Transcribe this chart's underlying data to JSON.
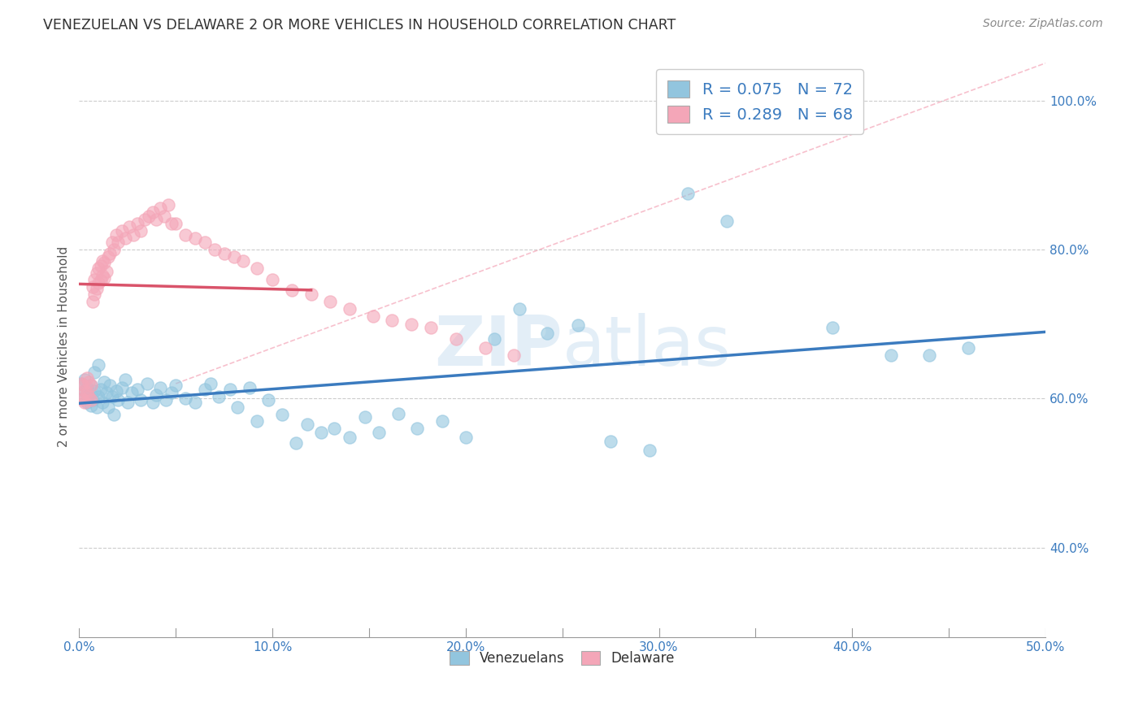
{
  "title": "VENEZUELAN VS DELAWARE 2 OR MORE VEHICLES IN HOUSEHOLD CORRELATION CHART",
  "source": "Source: ZipAtlas.com",
  "ylabel": "2 or more Vehicles in Household",
  "xlim": [
    0.0,
    0.5
  ],
  "ylim": [
    0.28,
    1.06
  ],
  "xtick_labels": [
    "0.0%",
    "",
    "10.0%",
    "",
    "20.0%",
    "",
    "30.0%",
    "",
    "40.0%",
    "",
    "50.0%"
  ],
  "xtick_vals": [
    0.0,
    0.05,
    0.1,
    0.15,
    0.2,
    0.25,
    0.3,
    0.35,
    0.4,
    0.45,
    0.5
  ],
  "ytick_labels": [
    "40.0%",
    "60.0%",
    "80.0%",
    "100.0%"
  ],
  "ytick_vals": [
    0.4,
    0.6,
    0.8,
    1.0
  ],
  "blue_color": "#92c5de",
  "pink_color": "#f4a6b8",
  "blue_line_color": "#3b7bbf",
  "pink_line_color": "#d9536a",
  "diag_line_color": "#f4a6b8",
  "watermark_color": "#c8dff0",
  "R_blue": 0.075,
  "N_blue": 72,
  "R_pink": 0.289,
  "N_pink": 68,
  "blue_scatter_x": [
    0.001,
    0.002,
    0.003,
    0.003,
    0.004,
    0.004,
    0.005,
    0.006,
    0.006,
    0.007,
    0.008,
    0.008,
    0.009,
    0.01,
    0.01,
    0.011,
    0.012,
    0.013,
    0.014,
    0.015,
    0.016,
    0.017,
    0.018,
    0.019,
    0.02,
    0.022,
    0.024,
    0.025,
    0.027,
    0.03,
    0.032,
    0.035,
    0.038,
    0.04,
    0.042,
    0.045,
    0.048,
    0.05,
    0.055,
    0.06,
    0.065,
    0.068,
    0.072,
    0.078,
    0.082,
    0.088,
    0.092,
    0.098,
    0.105,
    0.112,
    0.118,
    0.125,
    0.132,
    0.14,
    0.148,
    0.155,
    0.165,
    0.175,
    0.188,
    0.2,
    0.215,
    0.228,
    0.242,
    0.258,
    0.275,
    0.295,
    0.315,
    0.335,
    0.39,
    0.42,
    0.44,
    0.46
  ],
  "blue_scatter_y": [
    0.62,
    0.6,
    0.61,
    0.625,
    0.595,
    0.615,
    0.605,
    0.59,
    0.618,
    0.598,
    0.61,
    0.635,
    0.588,
    0.602,
    0.645,
    0.612,
    0.595,
    0.622,
    0.608,
    0.588,
    0.618,
    0.602,
    0.578,
    0.61,
    0.598,
    0.615,
    0.625,
    0.595,
    0.608,
    0.612,
    0.598,
    0.62,
    0.595,
    0.605,
    0.615,
    0.598,
    0.608,
    0.618,
    0.6,
    0.595,
    0.612,
    0.62,
    0.602,
    0.612,
    0.588,
    0.615,
    0.57,
    0.598,
    0.578,
    0.54,
    0.565,
    0.555,
    0.56,
    0.548,
    0.575,
    0.555,
    0.58,
    0.56,
    0.57,
    0.548,
    0.68,
    0.72,
    0.688,
    0.698,
    0.542,
    0.53,
    0.875,
    0.838,
    0.695,
    0.658,
    0.658,
    0.668
  ],
  "pink_scatter_x": [
    0.001,
    0.001,
    0.002,
    0.002,
    0.003,
    0.003,
    0.004,
    0.004,
    0.005,
    0.005,
    0.006,
    0.006,
    0.007,
    0.007,
    0.008,
    0.008,
    0.009,
    0.009,
    0.01,
    0.01,
    0.011,
    0.011,
    0.012,
    0.012,
    0.013,
    0.013,
    0.014,
    0.015,
    0.016,
    0.017,
    0.018,
    0.019,
    0.02,
    0.022,
    0.024,
    0.026,
    0.028,
    0.03,
    0.032,
    0.034,
    0.036,
    0.038,
    0.04,
    0.042,
    0.044,
    0.046,
    0.048,
    0.05,
    0.055,
    0.06,
    0.065,
    0.07,
    0.075,
    0.08,
    0.085,
    0.092,
    0.1,
    0.11,
    0.12,
    0.13,
    0.14,
    0.152,
    0.162,
    0.172,
    0.182,
    0.195,
    0.21,
    0.225
  ],
  "pink_scatter_y": [
    0.6,
    0.62,
    0.598,
    0.618,
    0.595,
    0.61,
    0.608,
    0.628,
    0.602,
    0.622,
    0.598,
    0.618,
    0.73,
    0.75,
    0.74,
    0.76,
    0.748,
    0.768,
    0.755,
    0.775,
    0.758,
    0.778,
    0.765,
    0.785,
    0.762,
    0.782,
    0.77,
    0.79,
    0.795,
    0.81,
    0.8,
    0.82,
    0.81,
    0.825,
    0.815,
    0.83,
    0.82,
    0.835,
    0.825,
    0.84,
    0.845,
    0.85,
    0.84,
    0.855,
    0.845,
    0.86,
    0.835,
    0.835,
    0.82,
    0.815,
    0.81,
    0.8,
    0.795,
    0.79,
    0.785,
    0.775,
    0.76,
    0.745,
    0.74,
    0.73,
    0.72,
    0.71,
    0.705,
    0.7,
    0.695,
    0.68,
    0.668,
    0.658
  ]
}
